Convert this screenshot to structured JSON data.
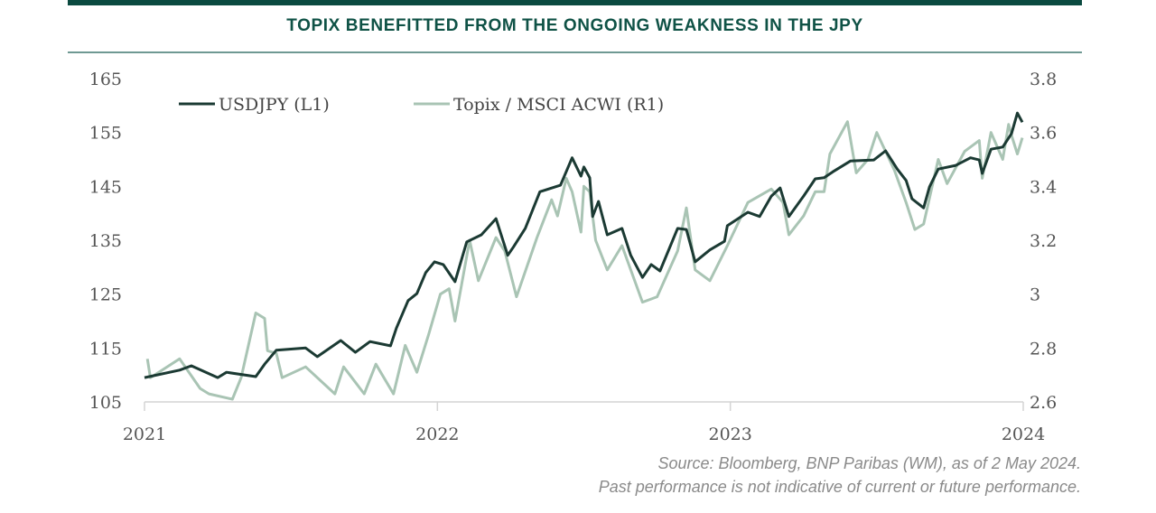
{
  "chart_data": {
    "type": "line",
    "title": "TOPIX BENEFITTED FROM THE ONGOING WEAKNESS IN THE JPY",
    "x_ticks": [
      "2021",
      "2022",
      "2023",
      "2024"
    ],
    "x_range": [
      2021,
      2024
    ],
    "y_left": {
      "range": [
        105,
        165
      ],
      "ticks": [
        "165",
        "155",
        "145",
        "135",
        "125",
        "115",
        "105"
      ]
    },
    "y_right": {
      "range": [
        2.6,
        3.8
      ],
      "ticks": [
        "3.8",
        "3.6",
        "3.4",
        "3.2",
        "3",
        "2.8",
        "2.6"
      ]
    },
    "legend_position": "top-left",
    "colors": {
      "usdjpy": "#1b3a33",
      "topix": "#a9c4b4",
      "brand": "#0b4a40"
    },
    "series": [
      {
        "name": "USDJPY (L1)",
        "axis": "left",
        "x": [
          2021.0,
          2021.12,
          2021.16,
          2021.25,
          2021.28,
          2021.38,
          2021.41,
          2021.45,
          2021.55,
          2021.59,
          2021.67,
          2021.72,
          2021.77,
          2021.84,
          2021.86,
          2021.9,
          2021.93,
          2021.96,
          2021.99,
          2022.02,
          2022.06,
          2022.1,
          2022.15,
          2022.2,
          2022.24,
          2022.26,
          2022.3,
          2022.35,
          2022.42,
          2022.46,
          2022.49,
          2022.5,
          2022.52,
          2022.53,
          2022.55,
          2022.58,
          2022.63,
          2022.66,
          2022.7,
          2022.73,
          2022.76,
          2022.82,
          2022.85,
          2022.88,
          2022.93,
          2022.98,
          2022.99,
          2023.06,
          2023.1,
          2023.14,
          2023.17,
          2023.2,
          2023.25,
          2023.29,
          2023.32,
          2023.35,
          2023.41,
          2023.49,
          2023.53,
          2023.57,
          2023.6,
          2023.62,
          2023.66,
          2023.68,
          2023.71,
          2023.77,
          2023.82,
          2023.85,
          2023.86,
          2023.89,
          2023.93,
          2023.96,
          2023.98,
          2023.997
        ],
        "values": [
          109.5,
          110.9,
          111.7,
          109.5,
          110.5,
          109.7,
          112,
          114.6,
          115,
          113.4,
          116.4,
          114.2,
          116.2,
          115.4,
          118.7,
          123.8,
          125.1,
          129,
          131,
          130.5,
          127.3,
          134.7,
          136,
          139,
          132.2,
          133.8,
          137.2,
          144,
          145.2,
          150.3,
          146.9,
          148.6,
          146.6,
          139.4,
          142.2,
          136,
          137.2,
          132.2,
          128.1,
          130.5,
          129.3,
          137.2,
          137,
          131,
          133.2,
          134.8,
          137.7,
          140.2,
          139.4,
          143.2,
          144.7,
          139.4,
          143.2,
          146.4,
          146.6,
          147.7,
          149.7,
          149.9,
          151.6,
          148.2,
          146.1,
          142.7,
          141,
          144.9,
          148.2,
          148.9,
          150.3,
          149.9,
          147.4,
          151.9,
          152.3,
          154.8,
          158.6,
          156.9
        ]
      },
      {
        "name": "Topix / MSCI ACWI (R1)",
        "axis": "right",
        "x": [
          2021.01,
          2021.02,
          2021.12,
          2021.19,
          2021.22,
          2021.3,
          2021.33,
          2021.38,
          2021.41,
          2021.42,
          2021.45,
          2021.47,
          2021.55,
          2021.65,
          2021.68,
          2021.75,
          2021.79,
          2021.85,
          2021.89,
          2021.93,
          2021.97,
          2022.01,
          2022.04,
          2022.06,
          2022.11,
          2022.14,
          2022.2,
          2022.23,
          2022.27,
          2022.34,
          2022.39,
          2022.41,
          2022.44,
          2022.46,
          2022.49,
          2022.5,
          2022.52,
          2022.54,
          2022.58,
          2022.63,
          2022.7,
          2022.75,
          2022.82,
          2022.85,
          2022.88,
          2022.93,
          2022.99,
          2023.06,
          2023.14,
          2023.18,
          2023.2,
          2023.25,
          2023.29,
          2023.32,
          2023.34,
          2023.4,
          2023.43,
          2023.47,
          2023.5,
          2023.56,
          2023.6,
          2023.63,
          2023.66,
          2023.71,
          2023.74,
          2023.8,
          2023.85,
          2023.86,
          2023.89,
          2023.93,
          2023.95,
          2023.96,
          2023.98,
          2023.997
        ],
        "values": [
          2.76,
          2.69,
          2.76,
          2.65,
          2.63,
          2.61,
          2.69,
          2.93,
          2.91,
          2.79,
          2.78,
          2.69,
          2.73,
          2.63,
          2.73,
          2.63,
          2.74,
          2.63,
          2.81,
          2.71,
          2.85,
          3.0,
          3.02,
          2.9,
          3.2,
          3.05,
          3.21,
          3.16,
          2.99,
          3.21,
          3.35,
          3.29,
          3.43,
          3.38,
          3.23,
          3.4,
          3.38,
          3.2,
          3.09,
          3.18,
          2.97,
          2.99,
          3.16,
          3.32,
          3.09,
          3.05,
          3.18,
          3.34,
          3.39,
          3.34,
          3.22,
          3.29,
          3.38,
          3.38,
          3.52,
          3.64,
          3.45,
          3.5,
          3.6,
          3.46,
          3.34,
          3.24,
          3.26,
          3.5,
          3.41,
          3.53,
          3.57,
          3.43,
          3.6,
          3.5,
          3.63,
          3.59,
          3.52,
          3.58
        ]
      }
    ]
  },
  "source": {
    "line1": "Source: Bloomberg, BNP Paribas (WM), as of 2 May 2024.",
    "line2": "Past performance is not indicative of current or future performance."
  }
}
